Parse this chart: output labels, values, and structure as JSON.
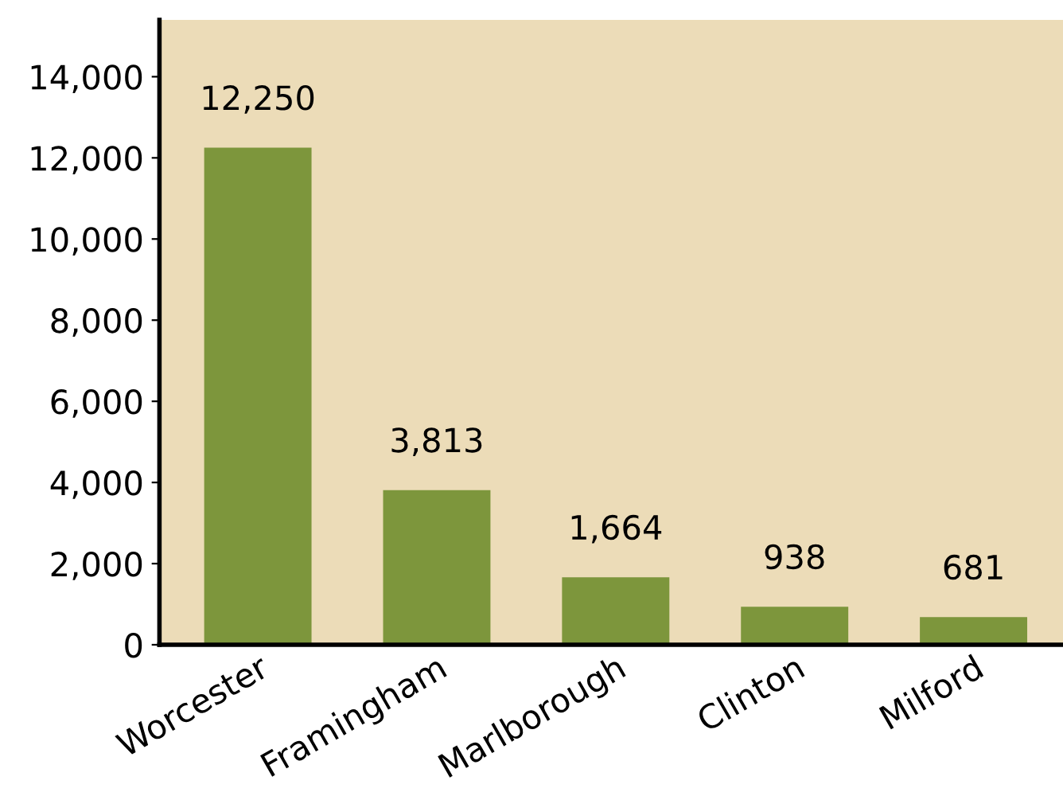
{
  "chart_data": {
    "type": "bar",
    "categories": [
      "Worcester",
      "Framingham",
      "Marlborough",
      "Clinton",
      "Milford"
    ],
    "values": [
      12250,
      3813,
      1664,
      938,
      681
    ],
    "value_labels": [
      "12,250",
      "3,813",
      "1,664",
      "938",
      "681"
    ],
    "color": "#7d963c",
    "ylim": [
      0,
      15400
    ],
    "yticks": [
      {
        "value": 0,
        "label": "0"
      },
      {
        "value": 2000,
        "label": "2,000"
      },
      {
        "value": 4000,
        "label": "4,000"
      },
      {
        "value": 6000,
        "label": "6,000"
      },
      {
        "value": 8000,
        "label": "8,000"
      },
      {
        "value": 10000,
        "label": "10,000"
      },
      {
        "value": 12000,
        "label": "12,000"
      },
      {
        "value": 14000,
        "label": "14,000"
      }
    ],
    "grid": false,
    "legend": false
  }
}
